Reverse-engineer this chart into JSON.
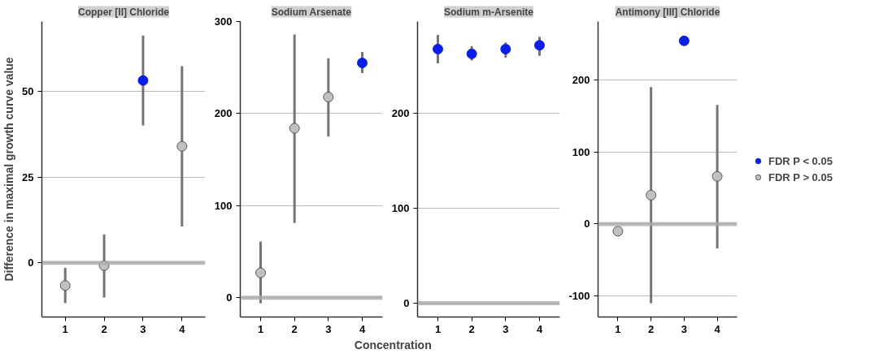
{
  "chart_data": [
    {
      "type": "scatter",
      "title": "Copper [II] Chloride",
      "ylabel": "Difference in maximal growth curve value",
      "xlim": [
        0.4,
        4.6
      ],
      "xticks": [
        1,
        2,
        3,
        4
      ],
      "ylim": [
        -15.8,
        70.4
      ],
      "yticks": [
        0,
        25,
        50
      ],
      "grid": "y",
      "marker": "circle",
      "legend": false,
      "ref_lines": [
        {
          "axis": "y",
          "value": 0,
          "color": "#aaaaaa"
        }
      ],
      "series": [
        {
          "color": "#0a1ee8",
          "x": [
            3
          ],
          "values": [
            53.2
          ],
          "errors": [
            [
              40.1,
              66.3
            ]
          ]
        },
        {
          "color": "#c0c0c0",
          "x": [
            1,
            2,
            4
          ],
          "values": [
            -6.6,
            -0.8,
            34.0
          ],
          "errors": [
            [
              -11.7,
              -1.5
            ],
            [
              -10.1,
              8.3
            ],
            [
              10.6,
              57.4
            ]
          ]
        }
      ]
    },
    {
      "type": "scatter",
      "title": "Sodium Arsenate",
      "xlabel": "Concentration",
      "xlim": [
        0.4,
        4.6
      ],
      "xticks": [
        1,
        2,
        3,
        4
      ],
      "ylim": [
        -21,
        300
      ],
      "yticks": [
        0,
        100,
        200,
        300
      ],
      "grid": "y",
      "marker": "circle",
      "legend": false,
      "ref_lines": [
        {
          "axis": "y",
          "value": 0,
          "color": "#aaaaaa"
        }
      ],
      "series": [
        {
          "color": "#0a1ee8",
          "x": [
            4
          ],
          "values": [
            255
          ],
          "errors": [
            [
              244,
              267
            ]
          ]
        },
        {
          "color": "#c0c0c0",
          "x": [
            1,
            2,
            3
          ],
          "values": [
            27,
            184,
            218
          ],
          "errors": [
            [
              -6,
              61
            ],
            [
              81,
              286
            ],
            [
              175,
              260
            ]
          ]
        }
      ]
    },
    {
      "type": "scatter",
      "title": "Sodium m-Arsenite",
      "xlim": [
        0.4,
        4.6
      ],
      "xticks": [
        1,
        2,
        3,
        4
      ],
      "ylim": [
        -14.6,
        296
      ],
      "yticks": [
        0,
        100,
        200
      ],
      "grid": "y",
      "marker": "circle",
      "legend": false,
      "ref_lines": [
        {
          "axis": "y",
          "value": 0,
          "color": "#aaaaaa"
        }
      ],
      "series": [
        {
          "color": "#0a1ee8",
          "x": [
            1,
            2,
            3,
            4
          ],
          "values": [
            267,
            262,
            267,
            271
          ],
          "errors": [
            [
              252,
              282
            ],
            [
              255,
              270
            ],
            [
              258,
              274
            ],
            [
              260,
              280
            ]
          ]
        }
      ]
    },
    {
      "type": "scatter",
      "title": "Antimony [III] Chloride",
      "xlim": [
        0.4,
        4.6
      ],
      "xticks": [
        1,
        2,
        3,
        4
      ],
      "ylim": [
        -129,
        280.8
      ],
      "yticks": [
        -100,
        0,
        100,
        200
      ],
      "grid": "y",
      "marker": "circle",
      "legend": "right",
      "ref_lines": [
        {
          "axis": "y",
          "value": 0,
          "color": "#aaaaaa"
        }
      ],
      "series": [
        {
          "name": "FDR P < 0.05",
          "color": "#0a1ee8",
          "x": [
            3
          ],
          "values": [
            254
          ],
          "errors": [
            null
          ]
        },
        {
          "name": "FDR P > 0.05",
          "color": "#c0c0c0",
          "x": [
            1,
            2,
            4
          ],
          "values": [
            -10,
            40,
            66
          ],
          "errors": [
            null,
            [
              -110,
              190
            ],
            [
              -34,
              165
            ]
          ]
        }
      ]
    }
  ]
}
